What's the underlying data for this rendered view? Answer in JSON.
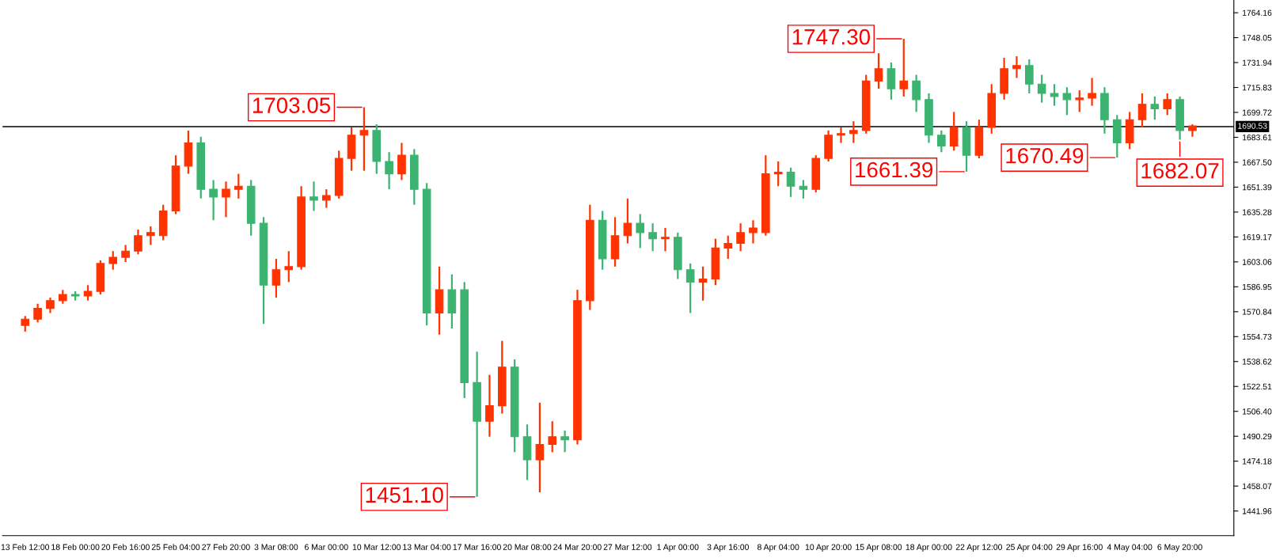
{
  "chart_data": {
    "type": "candlestick",
    "categories": [
      "13 Feb 12:00",
      null,
      null,
      null,
      "18 Feb 00:00",
      null,
      null,
      null,
      "20 Feb 16:00",
      null,
      null,
      null,
      "25 Feb 04:00",
      null,
      null,
      null,
      "27 Feb 20:00",
      null,
      null,
      null,
      "3 Mar 08:00",
      null,
      null,
      null,
      "6 Mar 00:00",
      null,
      null,
      null,
      "10 Mar 12:00",
      null,
      null,
      null,
      "13 Mar 04:00",
      null,
      null,
      null,
      "17 Mar 16:00",
      null,
      null,
      null,
      "20 Mar 08:00",
      null,
      null,
      null,
      "24 Mar 20:00",
      null,
      null,
      null,
      "27 Mar 12:00",
      null,
      null,
      null,
      "1 Apr 00:00",
      null,
      null,
      null,
      "3 Apr 16:00",
      null,
      null,
      null,
      "8 Apr 04:00",
      null,
      null,
      null,
      "10 Apr 20:00",
      null,
      null,
      null,
      "15 Apr 08:00",
      null,
      null,
      null,
      "18 Apr 00:00",
      null,
      null,
      null,
      "22 Apr 12:00",
      null,
      null,
      null,
      "25 Apr 04:00",
      null,
      null,
      null,
      "29 Apr 16:00",
      null,
      null,
      null,
      "4 May 04:00",
      null,
      null,
      null,
      "6 May 20:00",
      null
    ],
    "ohlc": [
      [
        1562,
        1568,
        1558,
        1566
      ],
      [
        1566,
        1576,
        1564,
        1573
      ],
      [
        1573,
        1580,
        1570,
        1578
      ],
      [
        1578,
        1585,
        1576,
        1582
      ],
      [
        1582,
        1584,
        1578,
        1581
      ],
      [
        1581,
        1588,
        1578,
        1584
      ],
      [
        1584,
        1604,
        1582,
        1602
      ],
      [
        1602,
        1610,
        1598,
        1606
      ],
      [
        1606,
        1614,
        1603,
        1610
      ],
      [
        1610,
        1624,
        1608,
        1620
      ],
      [
        1620,
        1626,
        1614,
        1622
      ],
      [
        1620,
        1640,
        1617,
        1636
      ],
      [
        1636,
        1672,
        1634,
        1665
      ],
      [
        1665,
        1688,
        1660,
        1680
      ],
      [
        1680,
        1684,
        1644,
        1650
      ],
      [
        1650,
        1656,
        1630,
        1645
      ],
      [
        1645,
        1655,
        1632,
        1650
      ],
      [
        1650,
        1660,
        1644,
        1652
      ],
      [
        1652,
        1656,
        1620,
        1628
      ],
      [
        1628,
        1632,
        1563,
        1588
      ],
      [
        1588,
        1605,
        1580,
        1598
      ],
      [
        1598,
        1610,
        1590,
        1600
      ],
      [
        1600,
        1652,
        1598,
        1645
      ],
      [
        1645,
        1655,
        1636,
        1643
      ],
      [
        1643,
        1650,
        1638,
        1646
      ],
      [
        1646,
        1675,
        1644,
        1670
      ],
      [
        1670,
        1690,
        1662,
        1685
      ],
      [
        1685,
        1703.05,
        1662,
        1688
      ],
      [
        1688,
        1692,
        1660,
        1668
      ],
      [
        1668,
        1674,
        1650,
        1660
      ],
      [
        1660,
        1680,
        1656,
        1672
      ],
      [
        1672,
        1676,
        1640,
        1650
      ],
      [
        1650,
        1654,
        1562,
        1570
      ],
      [
        1570,
        1600,
        1556,
        1585
      ],
      [
        1585,
        1595,
        1560,
        1570
      ],
      [
        1585,
        1590,
        1515,
        1525
      ],
      [
        1525,
        1545,
        1451.1,
        1500
      ],
      [
        1500,
        1530,
        1490,
        1510
      ],
      [
        1510,
        1552,
        1505,
        1535
      ],
      [
        1535,
        1540,
        1480,
        1490
      ],
      [
        1490,
        1498,
        1462,
        1475
      ],
      [
        1475,
        1512,
        1454,
        1485
      ],
      [
        1485,
        1500,
        1480,
        1490
      ],
      [
        1490,
        1494,
        1480,
        1488
      ],
      [
        1488,
        1585,
        1485,
        1578
      ],
      [
        1578,
        1640,
        1572,
        1630
      ],
      [
        1630,
        1636,
        1598,
        1605
      ],
      [
        1605,
        1632,
        1600,
        1620
      ],
      [
        1620,
        1644,
        1615,
        1628
      ],
      [
        1628,
        1634,
        1612,
        1622
      ],
      [
        1622,
        1628,
        1610,
        1618
      ],
      [
        1618,
        1625,
        1610,
        1619
      ],
      [
        1619,
        1622,
        1592,
        1598
      ],
      [
        1598,
        1602,
        1570,
        1590
      ],
      [
        1590,
        1600,
        1578,
        1592
      ],
      [
        1592,
        1618,
        1588,
        1612
      ],
      [
        1612,
        1620,
        1605,
        1615
      ],
      [
        1615,
        1628,
        1610,
        1622
      ],
      [
        1622,
        1630,
        1615,
        1625
      ],
      [
        1622,
        1672,
        1620,
        1660
      ],
      [
        1660,
        1668,
        1652,
        1661
      ],
      [
        1661,
        1664,
        1645,
        1652
      ],
      [
        1652,
        1656,
        1644,
        1650
      ],
      [
        1650,
        1672,
        1648,
        1670
      ],
      [
        1670,
        1688,
        1668,
        1685
      ],
      [
        1685,
        1690,
        1680,
        1686
      ],
      [
        1686,
        1694,
        1680,
        1688
      ],
      [
        1688,
        1724,
        1686,
        1720
      ],
      [
        1720,
        1738,
        1715,
        1728
      ],
      [
        1728,
        1732,
        1708,
        1715
      ],
      [
        1715,
        1747.3,
        1710,
        1720
      ],
      [
        1720,
        1724,
        1700,
        1708
      ],
      [
        1708,
        1712,
        1680,
        1685
      ],
      [
        1685,
        1688,
        1674,
        1678
      ],
      [
        1678,
        1700,
        1675,
        1690
      ],
      [
        1690,
        1694,
        1661.39,
        1672
      ],
      [
        1672,
        1695,
        1670,
        1690
      ],
      [
        1690,
        1718,
        1686,
        1712
      ],
      [
        1712,
        1735,
        1708,
        1728
      ],
      [
        1728,
        1736,
        1722,
        1730
      ],
      [
        1730,
        1734,
        1712,
        1718
      ],
      [
        1718,
        1724,
        1706,
        1712
      ],
      [
        1712,
        1718,
        1704,
        1710
      ],
      [
        1712,
        1716,
        1698,
        1708
      ],
      [
        1708,
        1714,
        1700,
        1709
      ],
      [
        1709,
        1722,
        1704,
        1712
      ],
      [
        1712,
        1716,
        1686,
        1695
      ],
      [
        1695,
        1698,
        1670.49,
        1680
      ],
      [
        1680,
        1700,
        1676,
        1695
      ],
      [
        1695,
        1712,
        1690,
        1705
      ],
      [
        1705,
        1710,
        1695,
        1702
      ],
      [
        1702,
        1712,
        1698,
        1708
      ],
      [
        1708,
        1710,
        1682.07,
        1688
      ],
      [
        1688,
        1692,
        1684,
        1691
      ]
    ],
    "colors": [
      "#ff3300",
      "#ff3300",
      "#ff3300",
      "#ff3300",
      "#3cb371",
      "#ff3300",
      "#ff3300",
      "#ff3300",
      "#ff3300",
      "#ff3300",
      "#ff3300",
      "#ff3300",
      "#ff3300",
      "#ff3300",
      "#3cb371",
      "#3cb371",
      "#ff3300",
      "#ff3300",
      "#3cb371",
      "#3cb371",
      "#ff3300",
      "#ff3300",
      "#ff3300",
      "#3cb371",
      "#ff3300",
      "#ff3300",
      "#ff3300",
      "#ff3300",
      "#3cb371",
      "#3cb371",
      "#ff3300",
      "#3cb371",
      "#3cb371",
      "#ff3300",
      "#3cb371",
      "#3cb371",
      "#3cb371",
      "#ff3300",
      "#ff3300",
      "#3cb371",
      "#3cb371",
      "#ff3300",
      "#ff3300",
      "#3cb371",
      "#ff3300",
      "#ff3300",
      "#3cb371",
      "#ff3300",
      "#ff3300",
      "#3cb371",
      "#3cb371",
      "#ff3300",
      "#3cb371",
      "#3cb371",
      "#ff3300",
      "#ff3300",
      "#ff3300",
      "#ff3300",
      "#ff3300",
      "#ff3300",
      "#ff3300",
      "#3cb371",
      "#3cb371",
      "#ff3300",
      "#ff3300",
      "#ff3300",
      "#ff3300",
      "#ff3300",
      "#ff3300",
      "#3cb371",
      "#ff3300",
      "#3cb371",
      "#3cb371",
      "#3cb371",
      "#ff3300",
      "#3cb371",
      "#ff3300",
      "#ff3300",
      "#ff3300",
      "#ff3300",
      "#3cb371",
      "#3cb371",
      "#3cb371",
      "#3cb371",
      "#ff3300",
      "#ff3300",
      "#3cb371",
      "#3cb371",
      "#ff3300",
      "#ff3300",
      "#3cb371",
      "#ff3300",
      "#3cb371",
      "#ff3300"
    ],
    "ylim": [
      1426.0,
      1772.4
    ],
    "yticks": [
      1441.96,
      1458.07,
      1474.18,
      1490.29,
      {
        "value": 1506.4,
        "label": "1506.40"
      },
      1522.51,
      1538.62,
      1554.73,
      1570.84,
      1586.95,
      1603.06,
      1619.17,
      1635.28,
      1651.39,
      {
        "value": 1667.5,
        "label": "1667.50"
      },
      1683.61,
      1699.72,
      1715.83,
      1731.94,
      1748.05,
      1764.16
    ],
    "ref_lines": [
      {
        "axis": "y",
        "value": 1690.53,
        "label": "1690.53",
        "color": "#000000"
      }
    ],
    "annotations": [
      "1703.05",
      "1451.10",
      "1747.30",
      "1661.39",
      "1670.49",
      "1682.07"
    ],
    "grid": false,
    "legend": false
  }
}
